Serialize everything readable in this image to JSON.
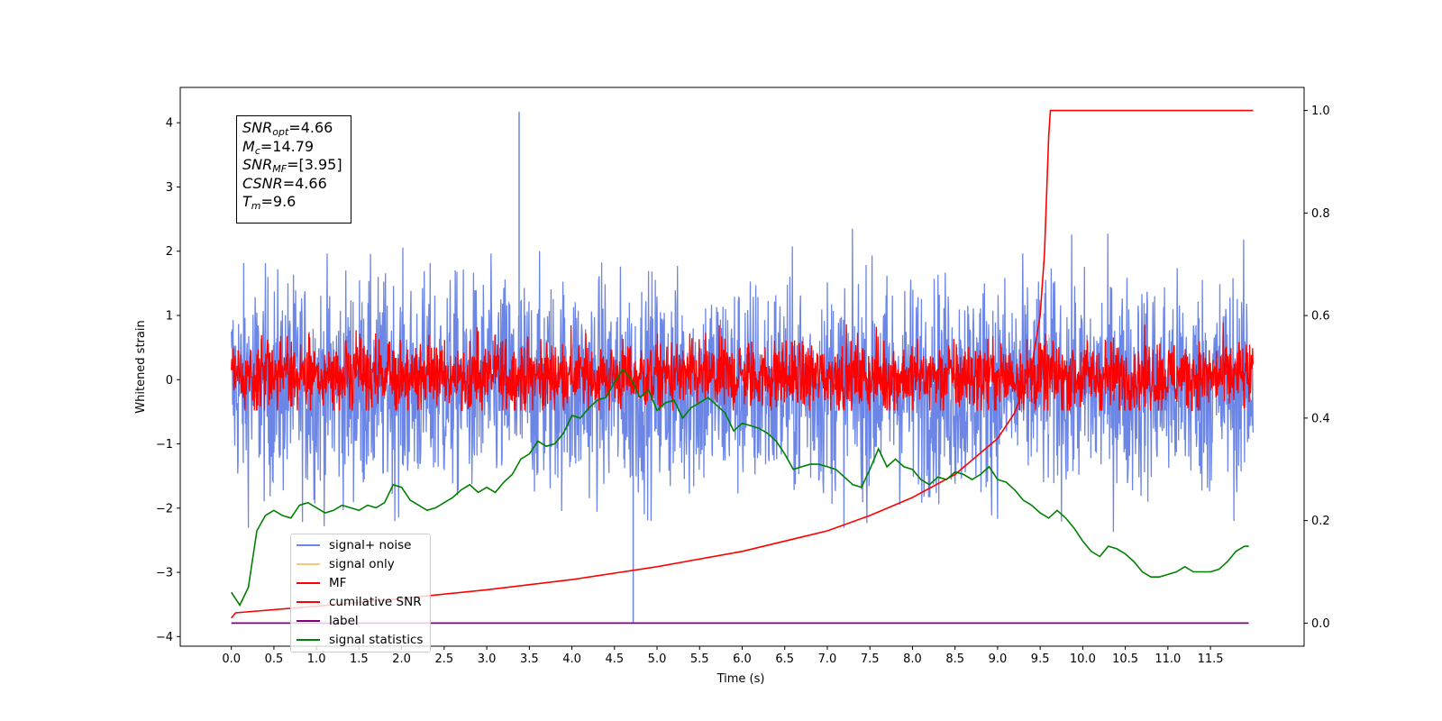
{
  "chart_data": {
    "type": "line",
    "xlabel": "Time (s)",
    "ylabel": "Whitened strain",
    "xlim": [
      -0.6,
      12.6
    ],
    "ylim": [
      -4.15,
      4.55
    ],
    "y2lim": [
      -0.045,
      1.045
    ],
    "xticks": [
      "0.0",
      "0.5",
      "1.0",
      "1.5",
      "2.0",
      "2.5",
      "3.0",
      "3.5",
      "4.0",
      "4.5",
      "5.0",
      "5.5",
      "6.0",
      "6.5",
      "7.0",
      "7.5",
      "8.0",
      "8.5",
      "9.0",
      "9.5",
      "10.0",
      "10.5",
      "11.0",
      "11.5"
    ],
    "yticks": [
      "4",
      "3",
      "2",
      "1",
      "0",
      "−1",
      "−2",
      "−3",
      "−4"
    ],
    "y2ticks": [
      "1.0",
      "0.8",
      "0.6",
      "0.4",
      "0.2",
      "0.0"
    ],
    "legend_location": "lower-left",
    "colors": {
      "signal_noise": "#6b86e6",
      "signal_only": "#f5c87a",
      "mf": "#ff0000",
      "cumulative": "#ff0000",
      "label": "#800080",
      "statistics": "#008000"
    },
    "series": [
      {
        "name": "signal+ noise",
        "key": "signal_noise",
        "axis": "left",
        "x_range": [
          0,
          12
        ],
        "center": -0.1,
        "spread_typical": [
          -2.2,
          2.2
        ],
        "max": 4.17,
        "max_at": 3.38,
        "min": -3.78,
        "min_at": 4.72
      },
      {
        "name": "signal only",
        "key": "signal_only",
        "axis": "left",
        "x_range": [
          0,
          12
        ],
        "note_value_peak": 0.7,
        "peak_at": 9.6
      },
      {
        "name": "MF",
        "key": "mf",
        "axis": "left",
        "x_range": [
          0,
          12
        ],
        "center": 0.0,
        "spread_typical": [
          -0.45,
          0.9
        ]
      },
      {
        "name": "cumilative SNR",
        "key": "cumulative",
        "axis": "right",
        "x": [
          0,
          0.05,
          1,
          2,
          3,
          4,
          5,
          6,
          7,
          7.5,
          8,
          8.5,
          9,
          9.2,
          9.4,
          9.5,
          9.55,
          9.6,
          9.62,
          12
        ],
        "values": [
          0.01,
          0.02,
          0.033,
          0.048,
          0.065,
          0.085,
          0.11,
          0.14,
          0.18,
          0.21,
          0.245,
          0.29,
          0.36,
          0.41,
          0.5,
          0.6,
          0.72,
          0.95,
          1.0,
          1.0
        ]
      },
      {
        "name": "label",
        "key": "label",
        "axis": "right",
        "x": [
          0,
          11.95
        ],
        "values": [
          0.0,
          0.0
        ]
      },
      {
        "name": "signal statistics",
        "key": "statistics",
        "axis": "right",
        "x": [
          0,
          0.1,
          0.2,
          0.3,
          0.4,
          0.5,
          0.6,
          0.7,
          0.8,
          0.9,
          1.0,
          1.1,
          1.2,
          1.3,
          1.4,
          1.5,
          1.6,
          1.7,
          1.8,
          1.9,
          2.0,
          2.1,
          2.2,
          2.3,
          2.4,
          2.5,
          2.6,
          2.7,
          2.8,
          2.9,
          3.0,
          3.1,
          3.2,
          3.3,
          3.4,
          3.5,
          3.6,
          3.7,
          3.8,
          3.9,
          4.0,
          4.1,
          4.2,
          4.3,
          4.4,
          4.5,
          4.6,
          4.7,
          4.8,
          4.9,
          5.0,
          5.1,
          5.2,
          5.3,
          5.4,
          5.5,
          5.6,
          5.7,
          5.8,
          5.9,
          6.0,
          6.1,
          6.2,
          6.3,
          6.4,
          6.5,
          6.6,
          6.7,
          6.8,
          6.9,
          7.0,
          7.1,
          7.2,
          7.3,
          7.4,
          7.5,
          7.6,
          7.7,
          7.8,
          7.9,
          8.0,
          8.1,
          8.2,
          8.3,
          8.4,
          8.5,
          8.6,
          8.7,
          8.8,
          8.9,
          9.0,
          9.1,
          9.2,
          9.3,
          9.4,
          9.5,
          9.6,
          9.7,
          9.8,
          9.9,
          10.0,
          10.1,
          10.2,
          10.3,
          10.4,
          10.5,
          10.6,
          10.7,
          10.8,
          10.9,
          11.0,
          11.1,
          11.2,
          11.3,
          11.4,
          11.5,
          11.6,
          11.7,
          11.8,
          11.9,
          11.95
        ],
        "values": [
          0.06,
          0.035,
          0.07,
          0.18,
          0.21,
          0.22,
          0.21,
          0.205,
          0.23,
          0.235,
          0.225,
          0.215,
          0.22,
          0.23,
          0.225,
          0.22,
          0.23,
          0.225,
          0.235,
          0.27,
          0.265,
          0.24,
          0.23,
          0.22,
          0.225,
          0.235,
          0.245,
          0.26,
          0.27,
          0.255,
          0.265,
          0.255,
          0.275,
          0.29,
          0.32,
          0.33,
          0.355,
          0.345,
          0.35,
          0.37,
          0.405,
          0.4,
          0.42,
          0.435,
          0.44,
          0.47,
          0.495,
          0.475,
          0.44,
          0.455,
          0.415,
          0.43,
          0.435,
          0.4,
          0.42,
          0.43,
          0.44,
          0.425,
          0.41,
          0.375,
          0.39,
          0.385,
          0.38,
          0.37,
          0.355,
          0.33,
          0.3,
          0.305,
          0.31,
          0.31,
          0.305,
          0.3,
          0.285,
          0.27,
          0.265,
          0.3,
          0.34,
          0.305,
          0.32,
          0.305,
          0.3,
          0.28,
          0.27,
          0.285,
          0.28,
          0.295,
          0.29,
          0.28,
          0.29,
          0.305,
          0.28,
          0.275,
          0.26,
          0.24,
          0.23,
          0.215,
          0.205,
          0.22,
          0.205,
          0.185,
          0.16,
          0.14,
          0.13,
          0.15,
          0.145,
          0.135,
          0.12,
          0.1,
          0.09,
          0.09,
          0.095,
          0.1,
          0.11,
          0.1,
          0.1,
          0.1,
          0.105,
          0.12,
          0.14,
          0.15,
          0.15
        ]
      }
    ]
  },
  "infobox": {
    "snr_opt": {
      "sym": "SNR",
      "sub": "opt",
      "val": "=4.66"
    },
    "mc": {
      "sym": "M",
      "sub": "c",
      "val": "=14.79"
    },
    "snr_mf": {
      "sym": "SNR",
      "sub": "MF",
      "val": "=[3.95]"
    },
    "csnr": {
      "sym": "CSNR",
      "val": "=4.66"
    },
    "tm": {
      "sym": "T",
      "sub": "m",
      "val": "=9.6"
    }
  },
  "legend": [
    "signal+ noise",
    "signal only",
    "MF",
    "cumilative SNR",
    "label",
    "signal statistics"
  ]
}
